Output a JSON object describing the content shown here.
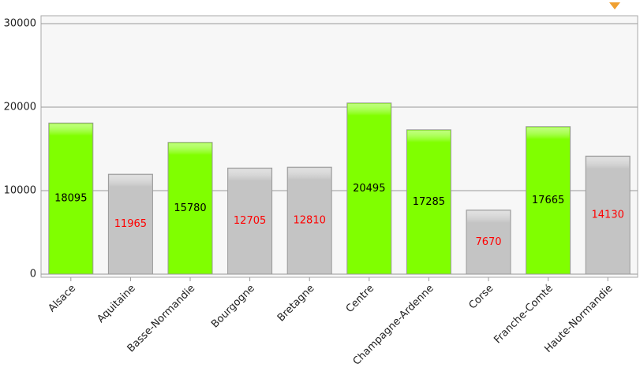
{
  "chart_data": {
    "type": "bar",
    "categories": [
      "Alsace",
      "Aquitaine",
      "Basse-Normandie",
      "Bourgogne",
      "Bretagne",
      "Centre",
      "Champagne-Ardenne",
      "Corse",
      "Franche-Comté",
      "Haute-Normandie"
    ],
    "values": [
      18095,
      11965,
      15780,
      12705,
      12810,
      20495,
      17285,
      7670,
      17665,
      14130
    ],
    "colors": [
      "#80ff00",
      "#c4c4c4",
      "#80ff00",
      "#c4c4c4",
      "#c4c4c4",
      "#80ff00",
      "#80ff00",
      "#c4c4c4",
      "#80ff00",
      "#c4c4c4"
    ],
    "label_colors": [
      "#000000",
      "#ff0000",
      "#000000",
      "#ff0000",
      "#ff0000",
      "#000000",
      "#000000",
      "#ff0000",
      "#000000",
      "#ff0000"
    ],
    "ylim": [
      0,
      30000
    ],
    "yticks": [
      0,
      10000,
      20000,
      30000
    ],
    "grid": true
  }
}
